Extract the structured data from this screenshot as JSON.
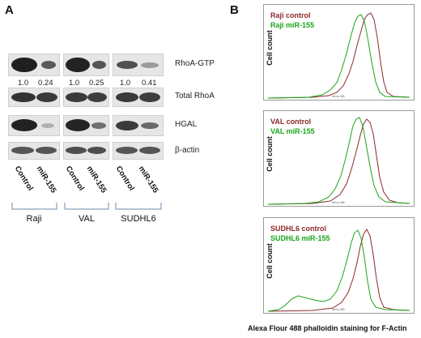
{
  "panel_a": {
    "letter": "A",
    "band_rows": [
      "RhoA-GTP",
      "Total RhoA",
      "HGAL",
      "β-actin"
    ],
    "groups": [
      {
        "name": "Raji",
        "ratios": [
          "1.0",
          "0.24"
        ]
      },
      {
        "name": "VAL",
        "ratios": [
          "1.0",
          "0.25"
        ]
      },
      {
        "name": "SUDHL6",
        "ratios": [
          "1.0",
          "0.41"
        ]
      }
    ],
    "lane_labels": [
      "Control",
      "miR-155"
    ]
  },
  "panel_b": {
    "letter": "B",
    "y_label": "Cell count",
    "x_axis_small": "Alexa 488",
    "x_title": "Alexa Flour 488 phalloidin staining for F-Actin",
    "histograms": [
      {
        "control": "Raji control",
        "mir": "Raji miR-155"
      },
      {
        "control": "VAL control",
        "mir": "VAL miR-155"
      },
      {
        "control": "SUDHL6 control",
        "mir": "SUDHL6 miR-155"
      }
    ],
    "colors": {
      "control": "#8b2b2b",
      "mir": "#1aa51a"
    }
  }
}
